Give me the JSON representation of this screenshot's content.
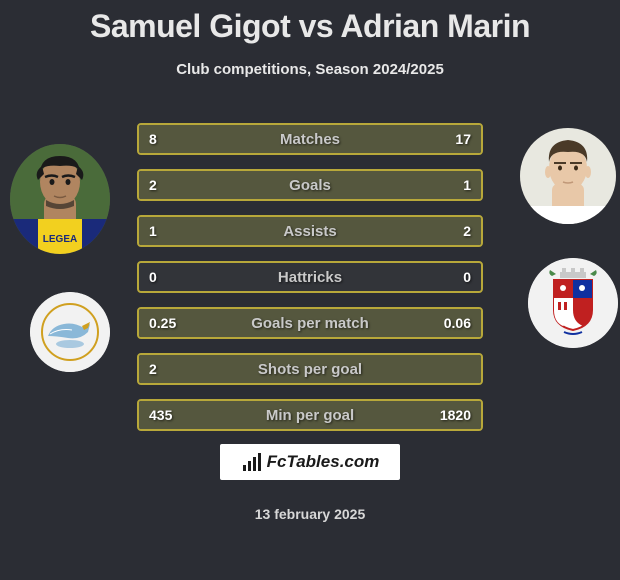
{
  "header": {
    "title": "Samuel Gigot vs Adrian Marin",
    "subtitle": "Club competitions, Season 2024/2025"
  },
  "players": {
    "left": {
      "name": "Samuel Gigot",
      "avatar_bg": "#4a6b3a",
      "shirt_primary": "#f2d01f",
      "shirt_secondary": "#1a2a7a",
      "hair": "#1a1a1a",
      "skin": "#b08560"
    },
    "right": {
      "name": "Adrian Marin",
      "avatar_bg": "#e8e8e0",
      "hair": "#4a3a28",
      "skin": "#e8c8a8"
    }
  },
  "badges": {
    "left": {
      "bg": "#f2f2f2",
      "primary": "#8ab8d8",
      "secondary": "#d0a020"
    },
    "right": {
      "bg": "#f2f2f2",
      "shield_red": "#c02020",
      "shield_blue": "#1030a0",
      "shield_white": "#ffffff"
    }
  },
  "stats": {
    "rows": [
      {
        "label": "Matches",
        "left": "8",
        "right": "17",
        "left_pct": 32,
        "right_pct": 68
      },
      {
        "label": "Goals",
        "left": "2",
        "right": "1",
        "left_pct": 67,
        "right_pct": 33
      },
      {
        "label": "Assists",
        "left": "1",
        "right": "2",
        "left_pct": 33,
        "right_pct": 67
      },
      {
        "label": "Hattricks",
        "left": "0",
        "right": "0",
        "left_pct": 0,
        "right_pct": 0
      },
      {
        "label": "Goals per match",
        "left": "0.25",
        "right": "0.06",
        "left_pct": 81,
        "right_pct": 19
      },
      {
        "label": "Shots per goal",
        "left": "2",
        "right": "",
        "left_pct": 100,
        "right_pct": 0
      },
      {
        "label": "Min per goal",
        "left": "435",
        "right": "1820",
        "left_pct": 19,
        "right_pct": 81
      }
    ],
    "bar_border": "#b8a83a",
    "bar_bg": "#323439",
    "bar_fill": "#55573e"
  },
  "footer": {
    "logo_text": "FcTables.com",
    "date": "13 february 2025"
  },
  "colors": {
    "page_bg": "#2b2d34",
    "title_color": "#e8e8e8"
  }
}
